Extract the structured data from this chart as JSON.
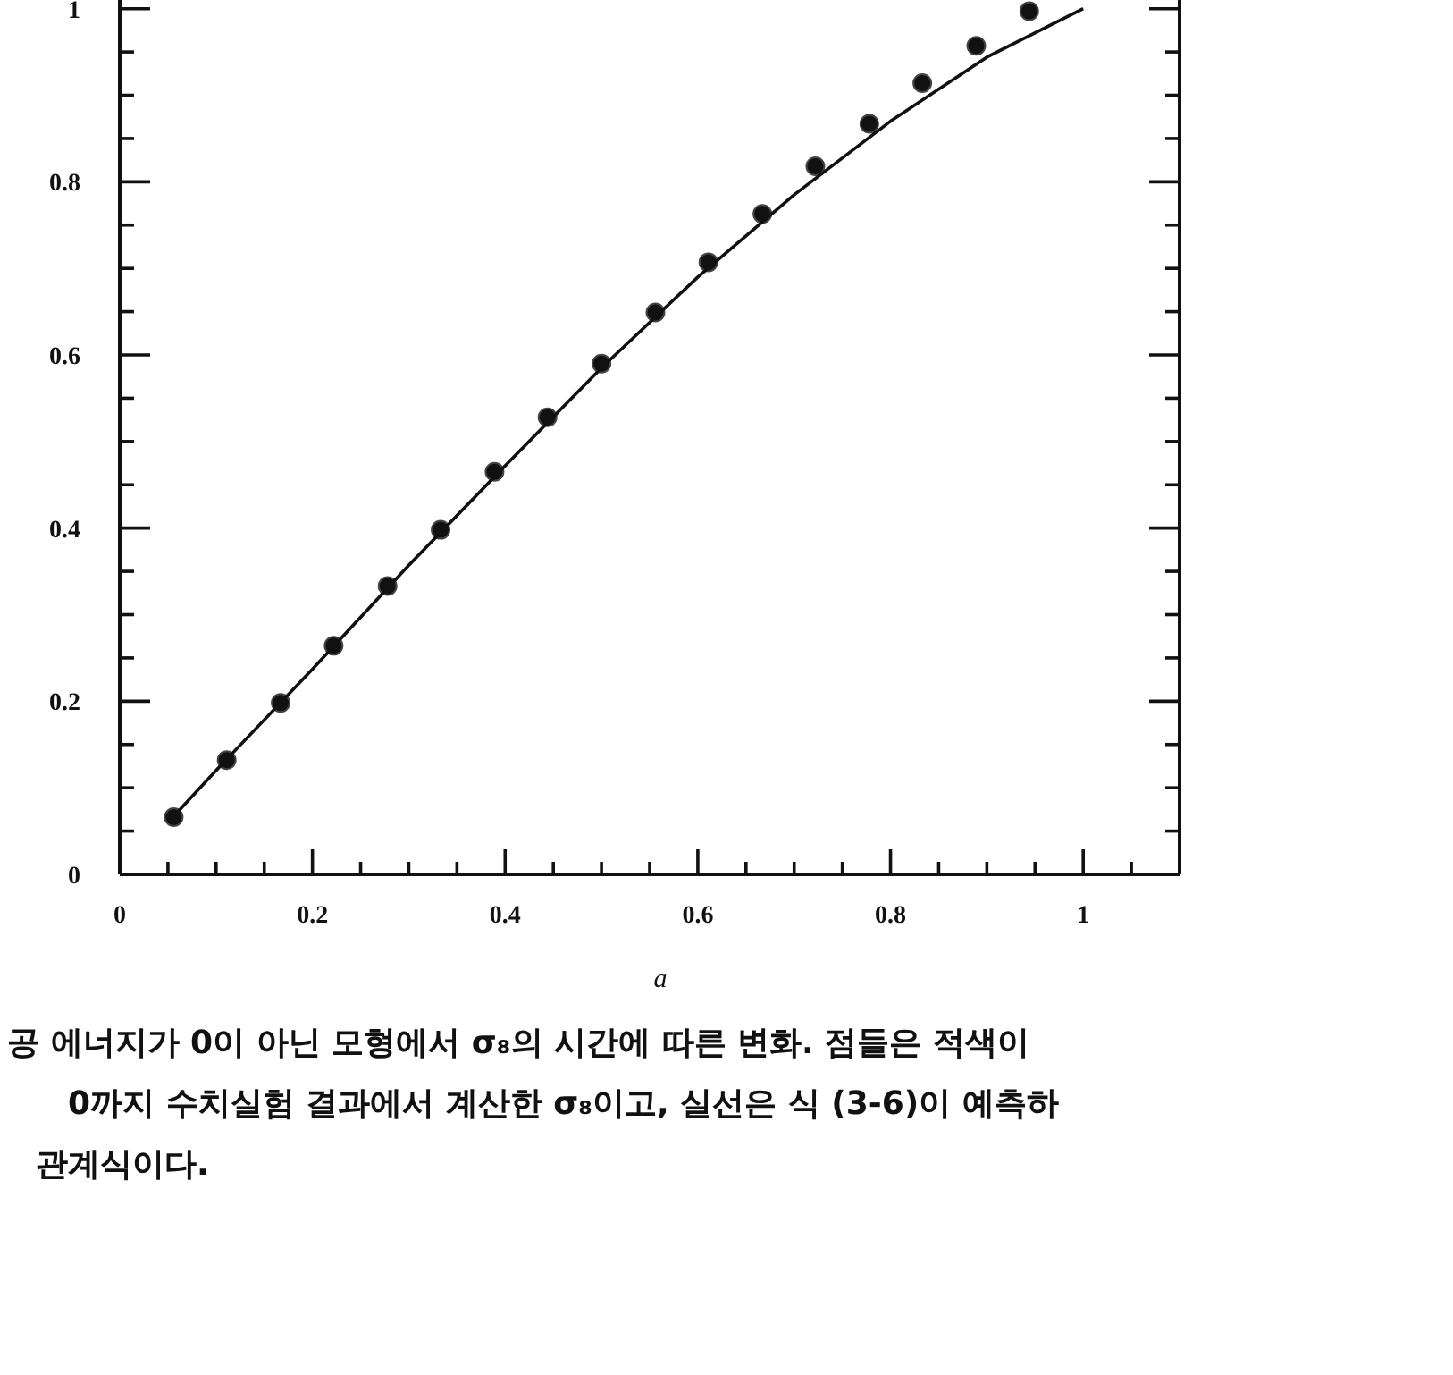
{
  "chart_data": {
    "type": "scatter",
    "xlabel": "a",
    "xlim": [
      0,
      1.1
    ],
    "ylim": [
      0,
      1.01
    ],
    "xticks": [
      0,
      {
        "value": 0.05,
        "label": null
      },
      {
        "value": 0.1,
        "label": null
      },
      {
        "value": 0.15,
        "label": null
      },
      0.2,
      {
        "value": 0.25,
        "label": null
      },
      {
        "value": 0.3,
        "label": null
      },
      {
        "value": 0.35,
        "label": null
      },
      0.4,
      {
        "value": 0.45,
        "label": null
      },
      {
        "value": 0.5,
        "label": null
      },
      {
        "value": 0.55,
        "label": null
      },
      0.6,
      {
        "value": 0.65,
        "label": null
      },
      {
        "value": 0.7,
        "label": null
      },
      {
        "value": 0.75,
        "label": null
      },
      0.8,
      {
        "value": 0.85,
        "label": null
      },
      {
        "value": 0.9,
        "label": null
      },
      {
        "value": 0.95,
        "label": null
      },
      1,
      {
        "value": 1.05,
        "label": null
      }
    ],
    "yticks": [
      0,
      {
        "value": 0.05,
        "label": null
      },
      {
        "value": 0.1,
        "label": null
      },
      {
        "value": 0.15,
        "label": null
      },
      0.2,
      {
        "value": 0.25,
        "label": null
      },
      {
        "value": 0.3,
        "label": null
      },
      {
        "value": 0.35,
        "label": null
      },
      0.4,
      {
        "value": 0.45,
        "label": null
      },
      {
        "value": 0.5,
        "label": null
      },
      {
        "value": 0.55,
        "label": null
      },
      0.6,
      {
        "value": 0.65,
        "label": null
      },
      {
        "value": 0.7,
        "label": null
      },
      {
        "value": 0.75,
        "label": null
      },
      0.8,
      {
        "value": 0.85,
        "label": null
      },
      {
        "value": 0.9,
        "label": null
      },
      {
        "value": 0.95,
        "label": null
      },
      1
    ],
    "series": [
      {
        "type": "scatter",
        "color": "#111111",
        "marker": "circle",
        "x": [
          0.056,
          0.111,
          0.167,
          0.222,
          0.278,
          0.333,
          0.389,
          0.444,
          0.5,
          0.556,
          0.611,
          0.667,
          0.722,
          0.778,
          0.833,
          0.889,
          0.944
        ],
        "values": [
          0.066,
          0.132,
          0.198,
          0.264,
          0.333,
          0.398,
          0.465,
          0.528,
          0.59,
          0.649,
          0.707,
          0.763,
          0.818,
          0.867,
          0.914,
          0.957,
          0.997
        ]
      },
      {
        "type": "line",
        "color": "#111111",
        "line_style": "solid",
        "x": [
          0.05,
          0.1,
          0.2,
          0.3,
          0.4,
          0.5,
          0.6,
          0.7,
          0.8,
          0.9,
          1.0
        ],
        "values": [
          0.06,
          0.12,
          0.237,
          0.357,
          0.472,
          0.585,
          0.69,
          0.785,
          0.87,
          0.944,
          1.0
        ]
      }
    ],
    "annotations": [
      "공 에너지가 0이 아닌 모형에서 σ₈의 시간에 따른 변화. 점들은 적색이",
      "0까지 수치실험 결과에서 계산한 σ₈이고, 실선은 식 (3-6)이 예측하",
      "관계식이다."
    ]
  }
}
